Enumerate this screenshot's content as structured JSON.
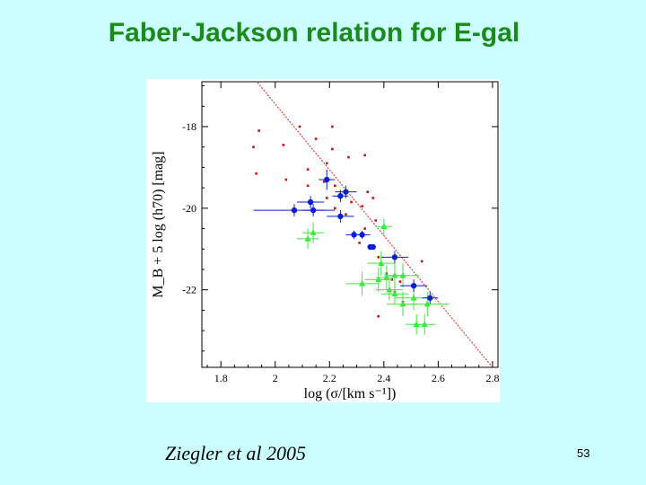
{
  "slide": {
    "title": "Faber-Jackson relation for E-gal",
    "caption": "Ziegler et al 2005",
    "page_number": "53"
  },
  "colors": {
    "background": "#ccffff",
    "title": "#1a8a1a",
    "green_points": "#3ee83e",
    "blue_points": "#0a1ed8",
    "red_points": "#cc1111",
    "fit_line": "#dd2222"
  },
  "chart_data": {
    "type": "scatter",
    "xlabel": "log (σ/[km s⁻¹])",
    "ylabel": "M_B + 5 log (h70) [mag]",
    "xlim": [
      1.73,
      2.82
    ],
    "ylim": [
      -16.9,
      -23.9
    ],
    "xticks": [
      1.8,
      2.0,
      2.2,
      2.4,
      2.6,
      2.8
    ],
    "xtick_labels": [
      "1.8",
      "2",
      "2.2",
      "2.4",
      "2.6",
      "2.8"
    ],
    "yticks": [
      -22,
      -20,
      -18
    ],
    "ytick_labels": [
      "-22",
      "-20",
      "-18"
    ],
    "fit_line": [
      [
        1.92,
        -16.8
      ],
      [
        2.8,
        -23.9
      ]
    ],
    "series": [
      {
        "name": "green",
        "marker": "triangle",
        "points": [
          {
            "x": 2.52,
            "y": -22.85,
            "xerr": 0.04,
            "yerr": 0.25
          },
          {
            "x": 2.55,
            "y": -22.85,
            "xerr": 0.04,
            "yerr": 0.25
          },
          {
            "x": 2.47,
            "y": -22.35,
            "xerr": 0.06,
            "yerr": 0.3
          },
          {
            "x": 2.51,
            "y": -22.2,
            "xerr": 0.07,
            "yerr": 0.3
          },
          {
            "x": 2.56,
            "y": -22.35,
            "xerr": 0.08,
            "yerr": 0.3
          },
          {
            "x": 2.44,
            "y": -22.1,
            "xerr": 0.05,
            "yerr": 0.25
          },
          {
            "x": 2.42,
            "y": -22.0,
            "xerr": 0.05,
            "yerr": 0.25
          },
          {
            "x": 2.38,
            "y": -21.75,
            "xerr": 0.05,
            "yerr": 0.3
          },
          {
            "x": 2.32,
            "y": -21.85,
            "xerr": 0.06,
            "yerr": 0.3
          },
          {
            "x": 2.41,
            "y": -21.7,
            "xerr": 0.04,
            "yerr": 0.3
          },
          {
            "x": 2.44,
            "y": -21.65,
            "xerr": 0.04,
            "yerr": 0.3
          },
          {
            "x": 2.47,
            "y": -21.65,
            "xerr": 0.06,
            "yerr": 0.3
          },
          {
            "x": 2.39,
            "y": -21.35,
            "xerr": 0.05,
            "yerr": 0.3
          },
          {
            "x": 2.12,
            "y": -20.75,
            "xerr": 0.04,
            "yerr": 0.25
          },
          {
            "x": 2.14,
            "y": -20.6,
            "xerr": 0.04,
            "yerr": 0.25
          },
          {
            "x": 2.4,
            "y": -20.45,
            "xerr": 0.03,
            "yerr": 0.2
          }
        ]
      },
      {
        "name": "blue",
        "marker": "circle",
        "points": [
          {
            "x": 2.57,
            "y": -22.2,
            "xerr": 0.03,
            "yerr": 0.15
          },
          {
            "x": 2.51,
            "y": -21.9,
            "xerr": 0.05,
            "yerr": 0.15
          },
          {
            "x": 2.44,
            "y": -21.2,
            "xerr": 0.05,
            "yerr": 0.15
          },
          {
            "x": 2.35,
            "y": -20.95,
            "xerr": 0.01,
            "yerr": 0.05
          },
          {
            "x": 2.36,
            "y": -20.95,
            "xerr": 0.01,
            "yerr": 0.05
          },
          {
            "x": 2.29,
            "y": -20.65,
            "xerr": 0.03,
            "yerr": 0.1
          },
          {
            "x": 2.32,
            "y": -20.65,
            "xerr": 0.03,
            "yerr": 0.1
          },
          {
            "x": 2.24,
            "y": -20.2,
            "xerr": 0.05,
            "yerr": 0.15
          },
          {
            "x": 2.07,
            "y": -20.05,
            "xerr": 0.15,
            "yerr": 0.15
          },
          {
            "x": 2.14,
            "y": -20.05,
            "xerr": 0.04,
            "yerr": 0.15
          },
          {
            "x": 2.13,
            "y": -19.85,
            "xerr": 0.05,
            "yerr": 0.15
          },
          {
            "x": 2.24,
            "y": -19.7,
            "xerr": 0.03,
            "yerr": 0.15
          },
          {
            "x": 2.26,
            "y": -19.6,
            "xerr": 0.04,
            "yerr": 0.15
          },
          {
            "x": 2.19,
            "y": -19.3,
            "xerr": 0.03,
            "yerr": 0.25
          }
        ]
      },
      {
        "name": "red",
        "marker": "small-square",
        "points": [
          {
            "x": 2.38,
            "y": -22.65
          },
          {
            "x": 2.47,
            "y": -22.3
          },
          {
            "x": 2.44,
            "y": -22.05
          },
          {
            "x": 2.46,
            "y": -21.8
          },
          {
            "x": 2.43,
            "y": -21.75
          },
          {
            "x": 2.41,
            "y": -21.6
          },
          {
            "x": 2.54,
            "y": -21.3
          },
          {
            "x": 2.38,
            "y": -21.2
          },
          {
            "x": 2.31,
            "y": -20.85
          },
          {
            "x": 2.29,
            "y": -20.65
          },
          {
            "x": 2.33,
            "y": -20.5
          },
          {
            "x": 2.37,
            "y": -20.3
          },
          {
            "x": 2.26,
            "y": -20.15
          },
          {
            "x": 2.22,
            "y": -20.0
          },
          {
            "x": 2.32,
            "y": -19.95
          },
          {
            "x": 2.28,
            "y": -19.85
          },
          {
            "x": 2.19,
            "y": -19.75
          },
          {
            "x": 2.36,
            "y": -19.75
          },
          {
            "x": 2.34,
            "y": -19.6
          },
          {
            "x": 2.12,
            "y": -19.45
          },
          {
            "x": 2.22,
            "y": -19.45
          },
          {
            "x": 2.18,
            "y": -19.35
          },
          {
            "x": 2.04,
            "y": -19.3
          },
          {
            "x": 1.93,
            "y": -19.15
          },
          {
            "x": 2.12,
            "y": -19.05
          },
          {
            "x": 2.19,
            "y": -18.9
          },
          {
            "x": 2.27,
            "y": -18.75
          },
          {
            "x": 2.33,
            "y": -18.7
          },
          {
            "x": 2.21,
            "y": -18.55
          },
          {
            "x": 1.92,
            "y": -18.5
          },
          {
            "x": 2.03,
            "y": -18.45
          },
          {
            "x": 2.15,
            "y": -18.3
          },
          {
            "x": 1.94,
            "y": -18.1
          },
          {
            "x": 2.09,
            "y": -18.0
          },
          {
            "x": 2.21,
            "y": -18.0
          }
        ]
      }
    ]
  }
}
